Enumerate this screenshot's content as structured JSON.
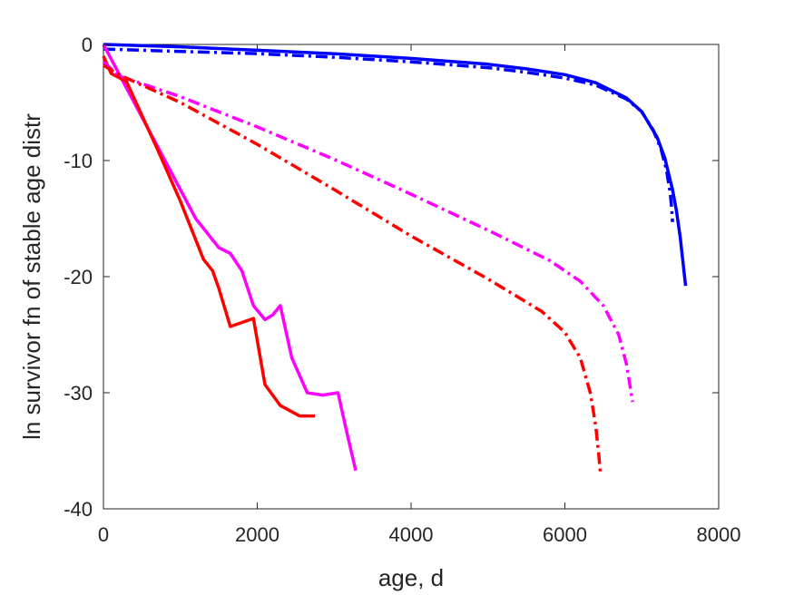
{
  "chart_data": {
    "type": "line",
    "title": "",
    "xlabel": "age, d",
    "ylabel": "ln survivor fn of stable age distr",
    "xlim": [
      0,
      8000
    ],
    "ylim": [
      -40,
      0
    ],
    "xticks": [
      0,
      2000,
      4000,
      6000,
      8000
    ],
    "yticks": [
      -40,
      -30,
      -20,
      -10,
      0
    ],
    "xtick_labels": [
      "0",
      "2000",
      "4000",
      "6000",
      "8000"
    ],
    "ytick_labels": [
      "-40",
      "-30",
      "-20",
      "-10",
      "0"
    ],
    "grid": false,
    "legend": "none",
    "series": [
      {
        "color": "#0000ff",
        "style": "solid",
        "x": [
          0,
          1000,
          2000,
          3000,
          4000,
          5000,
          5500,
          6000,
          6400,
          6800,
          7000,
          7200,
          7300,
          7400,
          7450,
          7500,
          7540,
          7560,
          7570
        ],
        "y": [
          0,
          -0.2,
          -0.5,
          -0.8,
          -1.2,
          -1.7,
          -2.1,
          -2.6,
          -3.3,
          -4.6,
          -5.8,
          -8.0,
          -9.8,
          -12.5,
          -14.3,
          -16.6,
          -19.0,
          -20.2,
          -20.8
        ]
      },
      {
        "color": "#0000ff",
        "style": "dashdot",
        "x": [
          0,
          1000,
          2000,
          3000,
          4000,
          5000,
          5500,
          6000,
          6400,
          6800,
          7000,
          7150,
          7250,
          7320,
          7370,
          7390,
          7400
        ],
        "y": [
          -0.4,
          -0.6,
          -0.8,
          -1.1,
          -1.5,
          -2.0,
          -2.4,
          -2.9,
          -3.5,
          -4.7,
          -5.8,
          -7.4,
          -9.0,
          -10.8,
          -12.8,
          -14.2,
          -15.3
        ]
      },
      {
        "color": "#ff00ff",
        "style": "solid",
        "x": [
          0,
          400,
          800,
          1200,
          1500,
          1650,
          1800,
          1950,
          2100,
          2200,
          2300,
          2450,
          2650,
          2850,
          3050,
          3150,
          3280
        ],
        "y": [
          0,
          -5,
          -10,
          -15,
          -17.5,
          -18.0,
          -19.5,
          -22.5,
          -23.7,
          -23.3,
          -22.5,
          -27.0,
          -30.0,
          -30.2,
          -30.0,
          -33.0,
          -36.7
        ]
      },
      {
        "color": "#ff0000",
        "style": "solid",
        "x": [
          0,
          100,
          300,
          700,
          1000,
          1300,
          1420,
          1500,
          1650,
          1950,
          2100,
          2300,
          2550,
          2750
        ],
        "y": [
          -1.0,
          -2.5,
          -3.2,
          -9.0,
          -13.5,
          -18.5,
          -19.5,
          -21.0,
          -24.3,
          -23.6,
          -29.3,
          -31.1,
          -32.0,
          -32.0
        ]
      },
      {
        "color": "#ff00ff",
        "style": "dashdot",
        "x": [
          0,
          200,
          1000,
          2000,
          3000,
          4000,
          5000,
          5800,
          6200,
          6500,
          6700,
          6800,
          6850,
          6880
        ],
        "y": [
          -1.5,
          -2.7,
          -4.5,
          -7.1,
          -9.9,
          -12.9,
          -16.0,
          -18.6,
          -20.4,
          -22.5,
          -25.0,
          -27.5,
          -29.5,
          -30.8
        ]
      },
      {
        "color": "#ff0000",
        "style": "dashdot",
        "x": [
          0,
          200,
          1000,
          2000,
          3000,
          4000,
          5000,
          5700,
          6000,
          6200,
          6330,
          6400,
          6440,
          6460
        ],
        "y": [
          -1.8,
          -2.6,
          -5.0,
          -8.6,
          -12.5,
          -16.5,
          -20.2,
          -23.0,
          -24.8,
          -27.0,
          -30.0,
          -32.8,
          -35.3,
          -36.8
        ]
      }
    ]
  }
}
